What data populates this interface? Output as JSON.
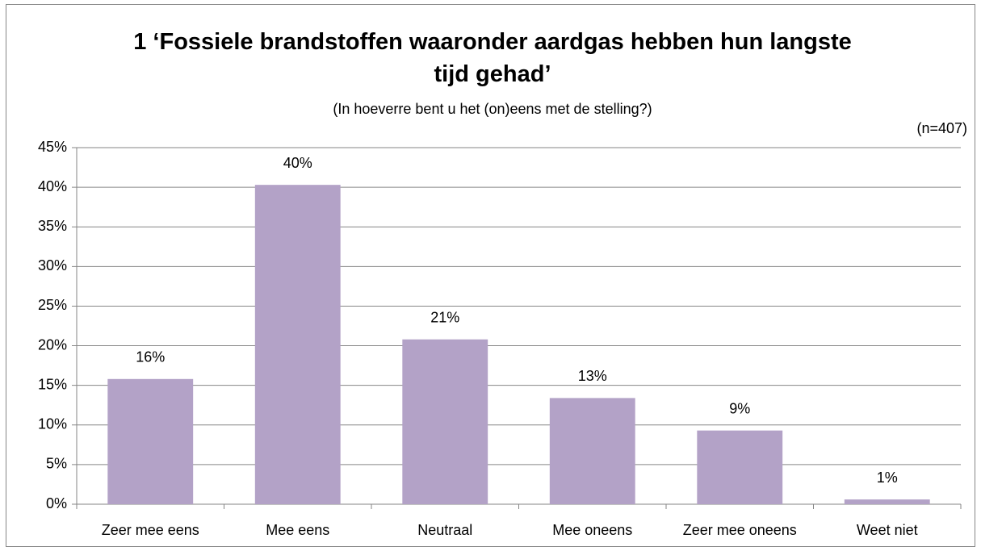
{
  "chart_data": {
    "type": "bar",
    "title": "1 ‘Fossiele brandstoffen waaronder aardgas hebben hun langste tijd gehad’",
    "subtitle": "(In hoeverre bent u het (on)eens met de stelling?)",
    "annotation": "(n=407)",
    "categories": [
      "Zeer mee eens",
      "Mee eens",
      "Neutraal",
      "Mee oneens",
      "Zeer mee oneens",
      "Weet niet"
    ],
    "values": [
      15.8,
      40.3,
      20.8,
      13.4,
      9.3,
      0.6
    ],
    "value_labels": [
      "16%",
      "40%",
      "21%",
      "13%",
      "9%",
      "1%"
    ],
    "color": "#b3a2c7",
    "ylim": [
      0,
      45
    ],
    "yticks": [
      {
        "value": 0,
        "label": "0%"
      },
      {
        "value": 5,
        "label": "5%"
      },
      {
        "value": 10,
        "label": "10%"
      },
      {
        "value": 15,
        "label": "15%"
      },
      {
        "value": 20,
        "label": "20%"
      },
      {
        "value": 25,
        "label": "25%"
      },
      {
        "value": 30,
        "label": "30%"
      },
      {
        "value": 35,
        "label": "35%"
      },
      {
        "value": 40,
        "label": "40%"
      },
      {
        "value": 45,
        "label": "45%"
      }
    ],
    "grid": true
  }
}
